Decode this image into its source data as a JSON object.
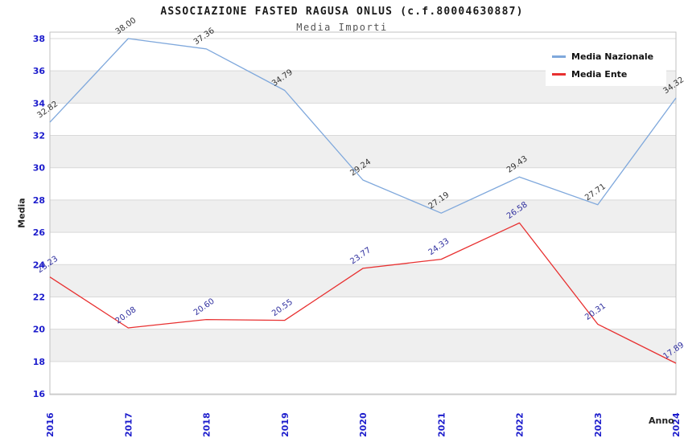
{
  "title": "ASSOCIAZIONE FASTED RAGUSA ONLUS (c.f.80004630887)",
  "subtitle": "Media Importi",
  "colors": {
    "tick_label": "#1c1ccc",
    "grid": "#d9d9d9",
    "band": "#efefef",
    "plot_border": "#c0c0c0",
    "background": "#ffffff"
  },
  "chart_data": {
    "type": "line",
    "title": "ASSOCIAZIONE FASTED RAGUSA ONLUS (c.f.80004630887)",
    "subtitle": "Media Importi",
    "xlabel": "Anno",
    "ylabel": "Media",
    "x": [
      "2016",
      "2017",
      "2018",
      "2019",
      "2020",
      "2021",
      "2022",
      "2023",
      "2024"
    ],
    "series": [
      {
        "name": "Media Nazionale",
        "color": "#7fa8dc",
        "label_color": "#333333",
        "values": [
          32.82,
          38.0,
          37.36,
          34.79,
          29.24,
          27.19,
          29.43,
          27.71,
          34.32
        ]
      },
      {
        "name": "Media Ente",
        "color": "#e83030",
        "label_color": "#2e2e9e",
        "values": [
          23.23,
          20.08,
          20.6,
          20.55,
          23.77,
          24.33,
          26.58,
          20.31,
          17.89
        ]
      }
    ],
    "ylim": [
      16,
      38.4
    ],
    "yticks": [
      16,
      18,
      20,
      22,
      24,
      26,
      28,
      30,
      32,
      34,
      36,
      38
    ],
    "grid": true,
    "banded_background": true,
    "legend_position": "top-right",
    "point_label_decimals": 2
  }
}
